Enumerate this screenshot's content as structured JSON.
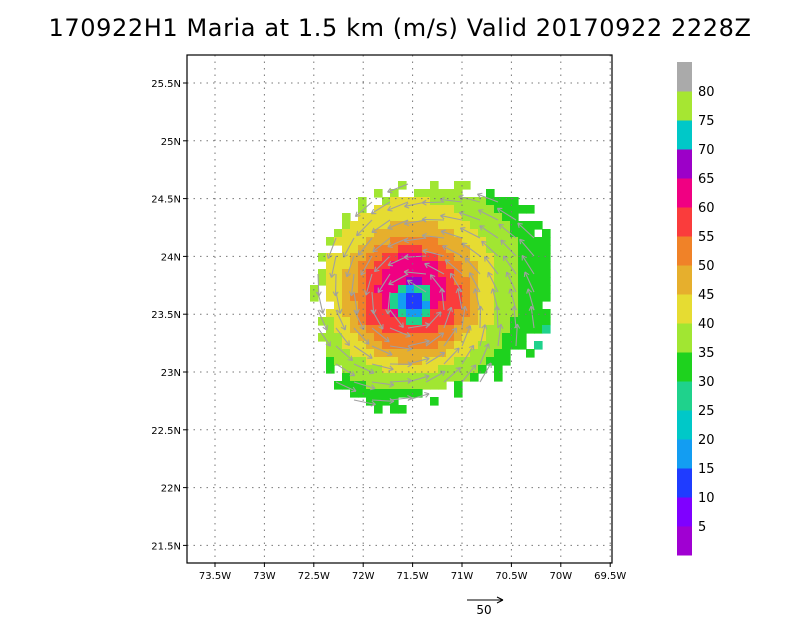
{
  "title": "170922H1 Maria at 1.5 km (m/s) Valid 20170922  2228Z",
  "map": {
    "lon_ticks": [
      "73.5W",
      "73W",
      "72.5W",
      "72W",
      "71.5W",
      "71W",
      "70.5W",
      "70W",
      "69.5W"
    ],
    "lat_ticks": [
      "25.5N",
      "25N",
      "24.5N",
      "24N",
      "23.5N",
      "23N",
      "22.5N",
      "22N",
      "21.5N"
    ],
    "gridlines": "dotted",
    "storm_center": {
      "lon": -71.5,
      "lat": 23.6
    }
  },
  "colorbar": {
    "labels": [
      "5",
      "10",
      "15",
      "20",
      "25",
      "30",
      "35",
      "40",
      "45",
      "50",
      "55",
      "60",
      "65",
      "70",
      "75",
      "80"
    ],
    "colors": [
      "#a000d2",
      "#7f00ff",
      "#1f3cff",
      "#139df2",
      "#00c8c8",
      "#1fd28c",
      "#1ed21e",
      "#a1e632",
      "#e6dc32",
      "#e6af2d",
      "#f08228",
      "#fa3c3c",
      "#f00082",
      "#9c00c8",
      "#00c8c8",
      "#a6e632",
      "#aaaaaa"
    ]
  },
  "reference_vector": {
    "label": "50"
  }
}
